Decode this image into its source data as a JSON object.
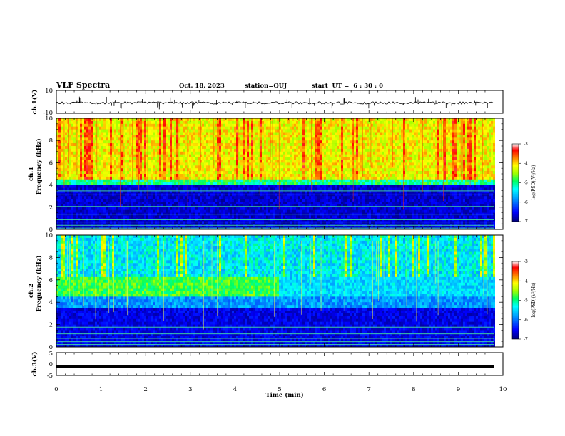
{
  "header": {
    "title": "VLF Spectra",
    "date": "Oct. 18, 2023",
    "station": "station=OUJ",
    "start_ut": "start  UT =  6 : 30 : 0"
  },
  "chart_data": [
    {
      "type": "line",
      "panel": "ch1-waveform",
      "ylabel": "ch.1(V)",
      "yticks": [
        "10",
        "-10"
      ],
      "ylim": [
        -10,
        10
      ],
      "x_range_min": [
        0,
        9.82
      ]
    },
    {
      "type": "heatmap",
      "panel": "ch1-spectrogram",
      "ylabel_line1": "ch.1",
      "ylabel_line2": "Frequency (kHz)",
      "yticks": [
        "0",
        "2",
        "4",
        "6",
        "8",
        "10"
      ],
      "ylim": [
        0,
        10
      ],
      "colorbar": {
        "label": "log(PSD)(V²/Hz)",
        "ticks": [
          "-3",
          "-4",
          "-5",
          "-6",
          "-7"
        ],
        "range": [
          -7,
          -3
        ]
      },
      "colormap": [
        "#00007a",
        "#0000ff",
        "#00a0ff",
        "#00ffff",
        "#00ff60",
        "#a0ff00",
        "#ffff00",
        "#ff8000",
        "#ff0000",
        "#ffffff"
      ]
    },
    {
      "type": "heatmap",
      "panel": "ch2-spectrogram",
      "ylabel_line1": "ch.2",
      "ylabel_line2": "Frequency (kHz)",
      "yticks": [
        "0",
        "2",
        "4",
        "6",
        "8",
        "10"
      ],
      "ylim": [
        0,
        10
      ],
      "colorbar": {
        "label": "log(PSD)(V²/Hz)",
        "ticks": [
          "-3",
          "-4",
          "-5",
          "-6",
          "-7"
        ],
        "range": [
          -7,
          -3
        ]
      }
    },
    {
      "type": "line",
      "panel": "ch3-waveform",
      "ylabel": "ch.3(V)",
      "yticks": [
        "5",
        "0",
        "-5"
      ],
      "ylim": [
        -5,
        5
      ],
      "value": -1
    }
  ],
  "xaxis": {
    "label": "Time (min)",
    "ticks": [
      "0",
      "1",
      "2",
      "3",
      "4",
      "5",
      "6",
      "7",
      "8",
      "9",
      "10"
    ],
    "range": [
      0,
      10
    ]
  }
}
